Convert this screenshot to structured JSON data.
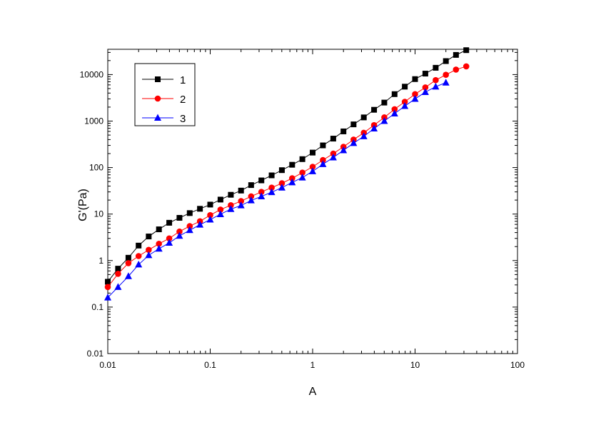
{
  "chart_data": {
    "type": "scatter",
    "xscale": "log",
    "yscale": "log",
    "xlabel": "A",
    "ylabel": "G'(Pa)",
    "xlim": [
      0.01,
      100
    ],
    "ylim": [
      0.01,
      35000
    ],
    "x_ticks": [
      0.01,
      0.1,
      1,
      10,
      100
    ],
    "x_tick_labels": [
      "0.01",
      "0.1",
      "1",
      "10",
      "100"
    ],
    "y_ticks": [
      0.01,
      0.1,
      1,
      10,
      100,
      1000,
      10000
    ],
    "y_tick_labels": [
      "0.01",
      "0.1",
      "1",
      "10",
      "100",
      "1000",
      "10000"
    ],
    "grid": false,
    "legend_position": "top-left",
    "series": [
      {
        "name": "1",
        "color": "#000000",
        "marker": "square",
        "points": [
          [
            0.01,
            0.35
          ],
          [
            0.0126,
            0.67
          ],
          [
            0.0159,
            1.15
          ],
          [
            0.02,
            2.1
          ],
          [
            0.0251,
            3.3
          ],
          [
            0.0316,
            4.7
          ],
          [
            0.0398,
            6.5
          ],
          [
            0.0501,
            8.3
          ],
          [
            0.0631,
            10.5
          ],
          [
            0.0794,
            13.0
          ],
          [
            0.1,
            16.0
          ],
          [
            0.126,
            20.5
          ],
          [
            0.159,
            26.0
          ],
          [
            0.2,
            32.0
          ],
          [
            0.251,
            42.0
          ],
          [
            0.316,
            53.0
          ],
          [
            0.398,
            68.0
          ],
          [
            0.501,
            88.0
          ],
          [
            0.631,
            115
          ],
          [
            0.794,
            152
          ],
          [
            1.0,
            210
          ],
          [
            1.26,
            300
          ],
          [
            1.59,
            420
          ],
          [
            2.0,
            600
          ],
          [
            2.51,
            850
          ],
          [
            3.16,
            1200
          ],
          [
            3.98,
            1750
          ],
          [
            5.01,
            2500
          ],
          [
            6.31,
            3800
          ],
          [
            7.94,
            5500
          ],
          [
            10.0,
            8000
          ],
          [
            12.6,
            10500
          ],
          [
            15.9,
            14000
          ],
          [
            20.0,
            19500
          ],
          [
            25.1,
            26500
          ],
          [
            31.6,
            33500
          ]
        ]
      },
      {
        "name": "2",
        "color": "#ff0000",
        "marker": "circle",
        "points": [
          [
            0.01,
            0.27
          ],
          [
            0.0126,
            0.52
          ],
          [
            0.0159,
            0.88
          ],
          [
            0.02,
            1.25
          ],
          [
            0.0251,
            1.7
          ],
          [
            0.0316,
            2.3
          ],
          [
            0.0398,
            3.0
          ],
          [
            0.0501,
            4.2
          ],
          [
            0.0631,
            5.5
          ],
          [
            0.0794,
            7.0
          ],
          [
            0.1,
            9.5
          ],
          [
            0.126,
            12.5
          ],
          [
            0.159,
            15.5
          ],
          [
            0.2,
            19.0
          ],
          [
            0.251,
            24.0
          ],
          [
            0.316,
            30.0
          ],
          [
            0.398,
            37.0
          ],
          [
            0.501,
            46.0
          ],
          [
            0.631,
            59.0
          ],
          [
            0.794,
            78.0
          ],
          [
            1.0,
            104
          ],
          [
            1.26,
            145
          ],
          [
            1.59,
            200
          ],
          [
            2.0,
            280
          ],
          [
            2.51,
            400
          ],
          [
            3.16,
            560
          ],
          [
            3.98,
            820
          ],
          [
            5.01,
            1200
          ],
          [
            6.31,
            1800
          ],
          [
            7.94,
            2600
          ],
          [
            10.0,
            3800
          ],
          [
            12.6,
            5300
          ],
          [
            15.9,
            7600
          ],
          [
            20.0,
            9900
          ],
          [
            25.1,
            12800
          ],
          [
            31.6,
            15000
          ]
        ]
      },
      {
        "name": "3",
        "color": "#0000ff",
        "marker": "triangle",
        "points": [
          [
            0.01,
            0.16
          ],
          [
            0.0126,
            0.27
          ],
          [
            0.0159,
            0.46
          ],
          [
            0.02,
            0.82
          ],
          [
            0.0251,
            1.3
          ],
          [
            0.0316,
            1.8
          ],
          [
            0.0398,
            2.4
          ],
          [
            0.0501,
            3.4
          ],
          [
            0.0631,
            4.5
          ],
          [
            0.0794,
            5.9
          ],
          [
            0.1,
            7.6
          ],
          [
            0.126,
            9.9
          ],
          [
            0.159,
            12.8
          ],
          [
            0.2,
            15.3
          ],
          [
            0.251,
            19.6
          ],
          [
            0.316,
            24.0
          ],
          [
            0.398,
            29.5
          ],
          [
            0.501,
            37.0
          ],
          [
            0.631,
            48.0
          ],
          [
            0.794,
            61.0
          ],
          [
            1.0,
            83
          ],
          [
            1.26,
            118
          ],
          [
            1.59,
            165
          ],
          [
            2.0,
            235
          ],
          [
            2.51,
            335
          ],
          [
            3.16,
            470
          ],
          [
            3.98,
            690
          ],
          [
            5.01,
            1000
          ],
          [
            6.31,
            1450
          ],
          [
            7.94,
            2100
          ],
          [
            10.0,
            3000
          ],
          [
            12.6,
            4200
          ],
          [
            15.9,
            5500
          ],
          [
            20.0,
            6700
          ]
        ]
      }
    ]
  }
}
